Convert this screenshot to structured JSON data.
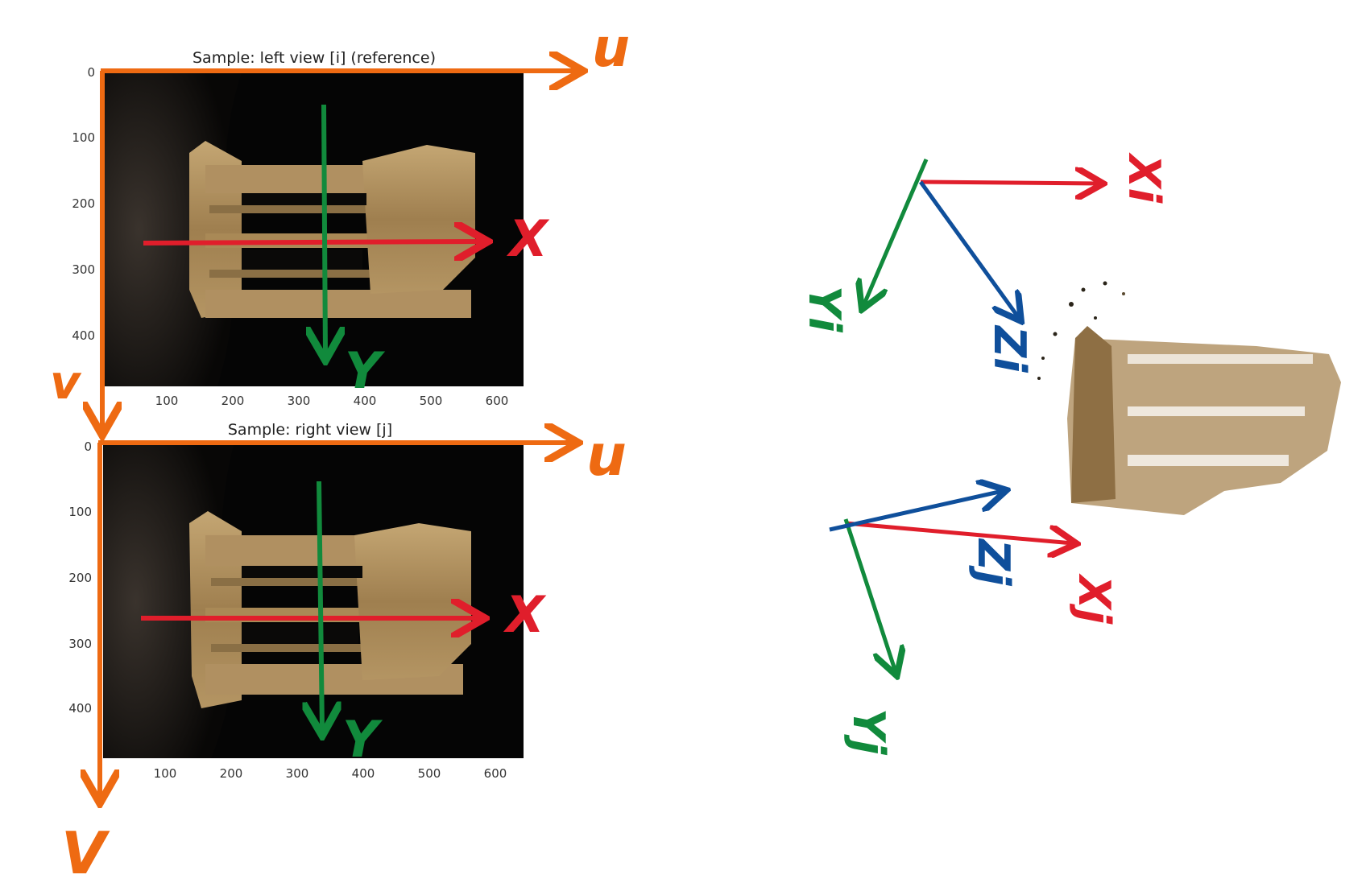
{
  "top_plot": {
    "title": "Sample: left view [i] (reference)",
    "y_ticks": [
      "0",
      "100",
      "200",
      "300",
      "400"
    ],
    "x_ticks": [
      "100",
      "200",
      "300",
      "400",
      "500",
      "600"
    ]
  },
  "bottom_plot": {
    "title": "Sample: right view [j]",
    "y_ticks": [
      "0",
      "100",
      "200",
      "300",
      "400"
    ],
    "x_ticks": [
      "100",
      "200",
      "300",
      "400",
      "500",
      "600"
    ]
  },
  "annotations": {
    "u_top": "u",
    "v_top": "v",
    "x_top": "X",
    "y_top": "Y",
    "u_bottom": "u",
    "v_bottom": "V",
    "x_bottom": "X",
    "y_bottom": "Y",
    "xi": "Xi",
    "yi": "Yi",
    "zi": "Zi",
    "xj": "Xj",
    "yj": "Yj",
    "zj": "Zj"
  },
  "colors": {
    "orange": "#ee6a12",
    "red": "#e01e2b",
    "green": "#118a3c",
    "blue": "#0f4f9b",
    "stone": "#a88a5a",
    "background_photo": "#050505",
    "cloth": "#2a2623"
  }
}
